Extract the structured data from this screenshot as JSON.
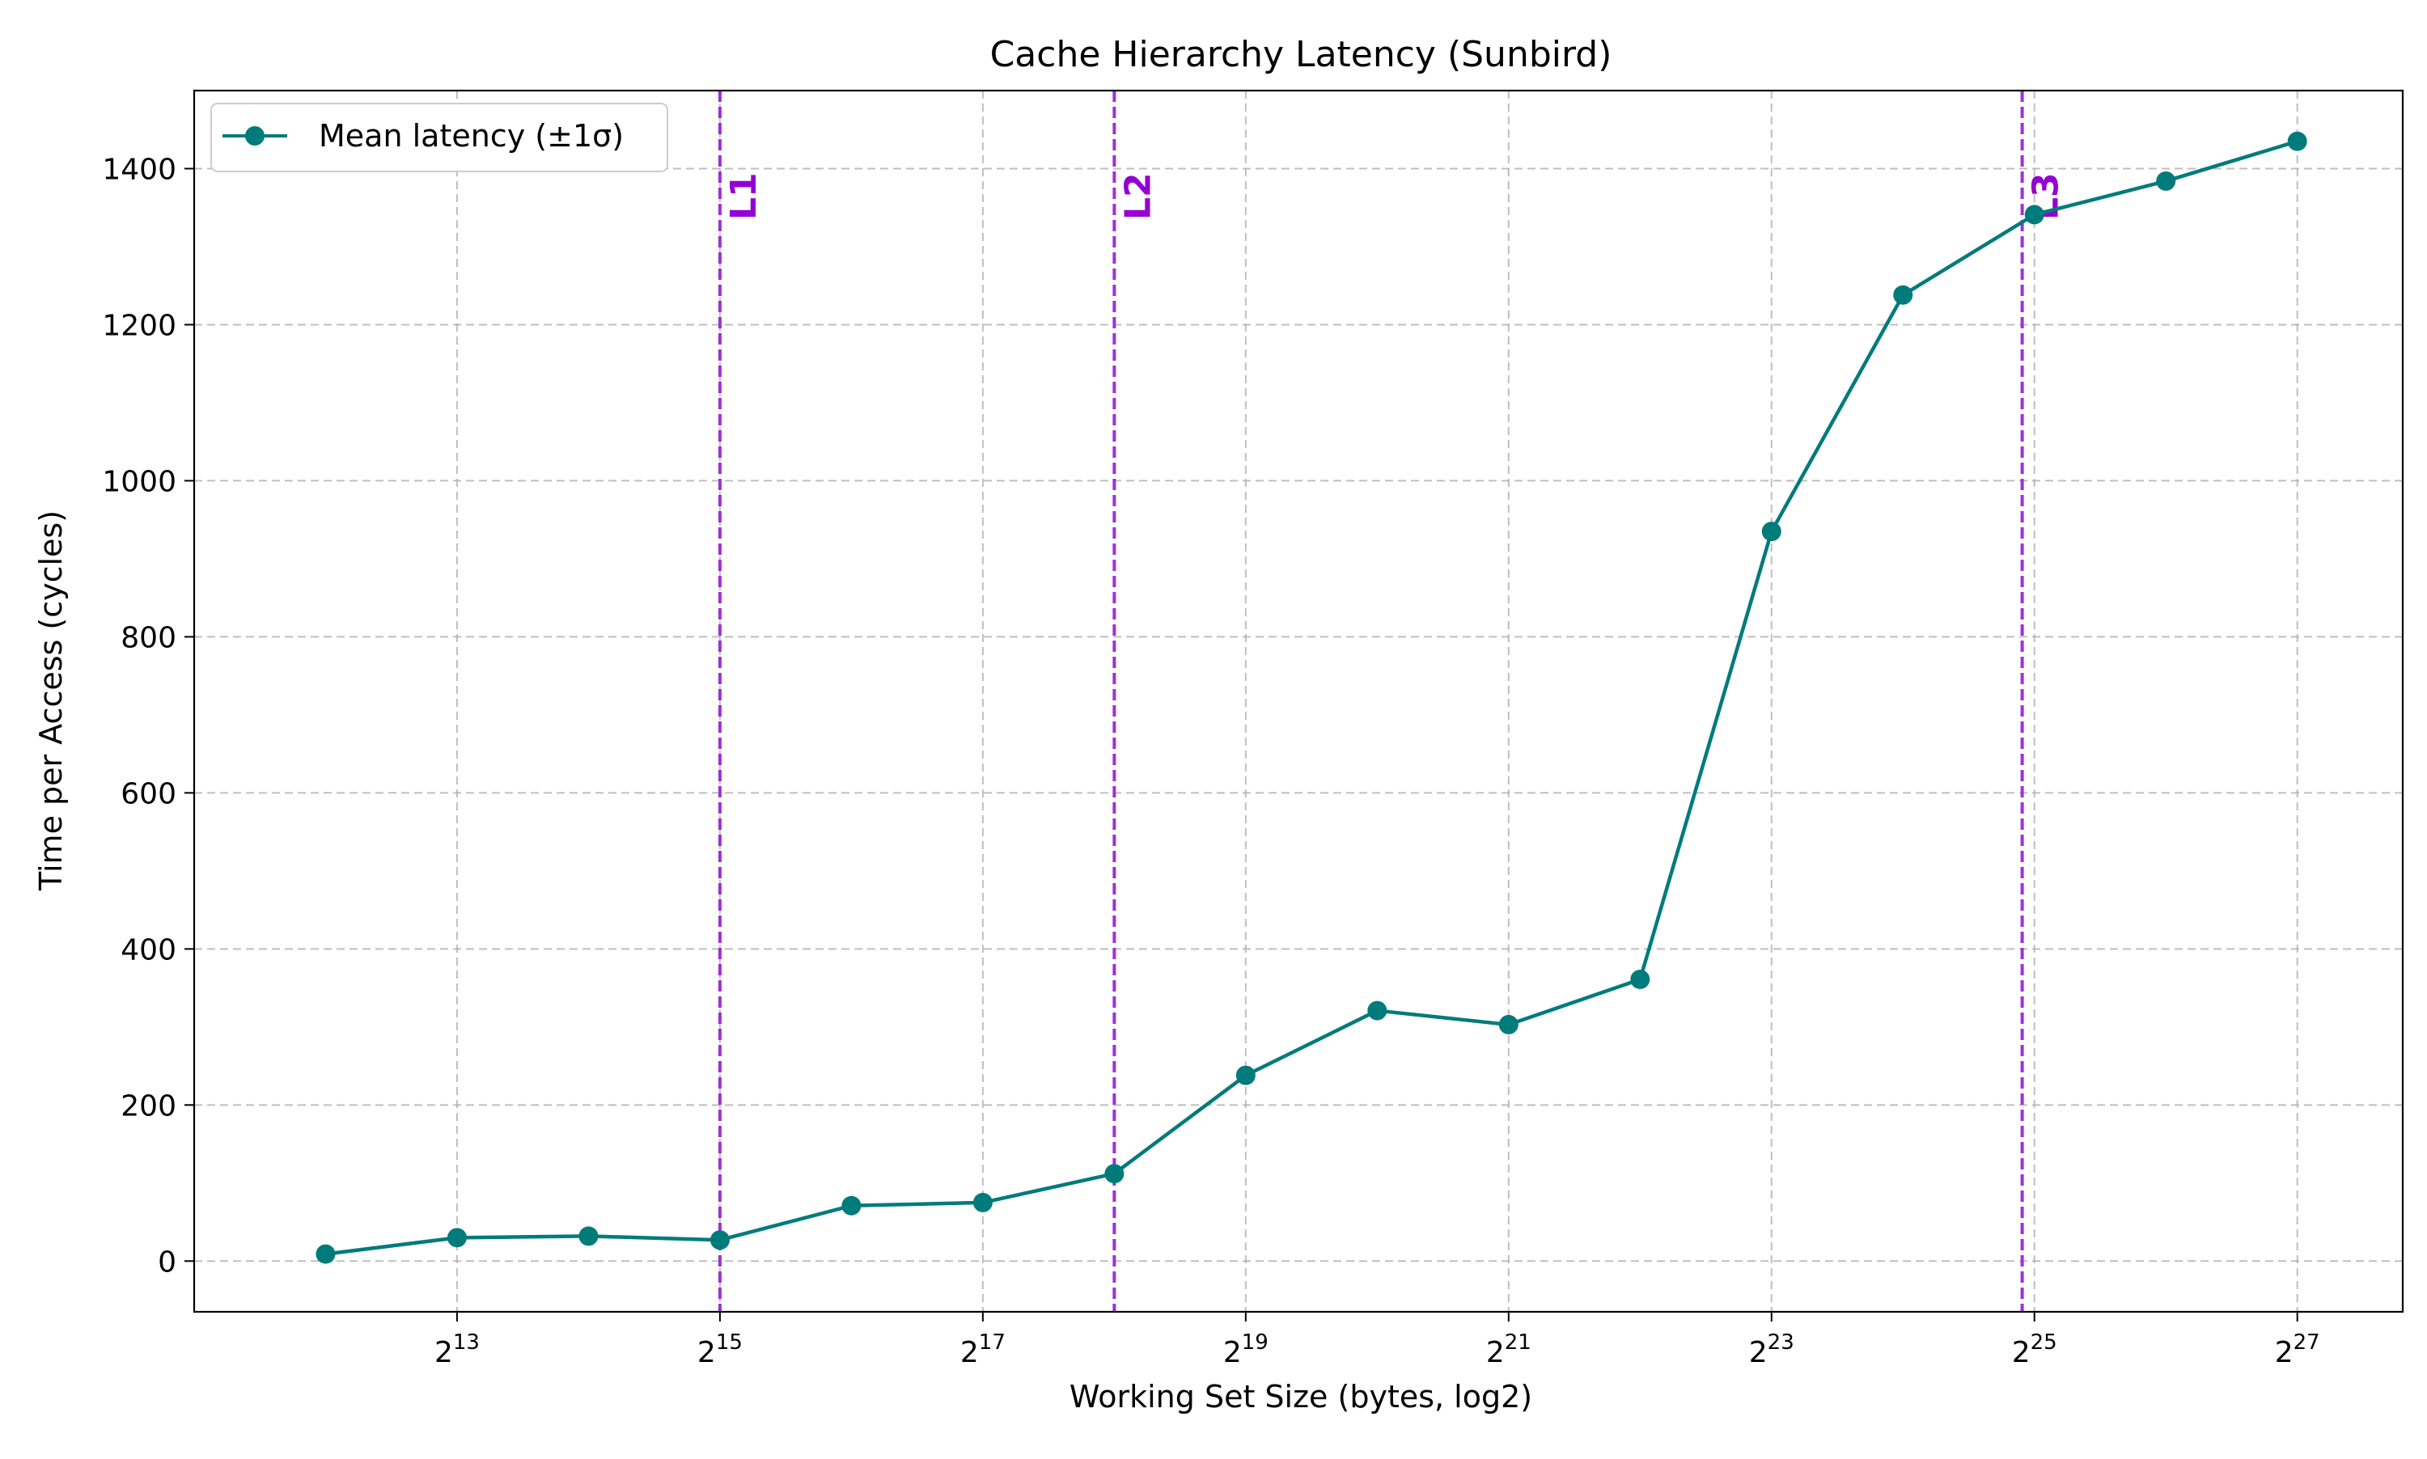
{
  "chart_data": {
    "type": "line",
    "title": "Cache Hierarchy Latency (Sunbird)",
    "xlabel": "Working Set Size (bytes, log2)",
    "ylabel": "Time per Access (cycles)",
    "x_scale": "log2",
    "xlim": [
      2048,
      234000000
    ],
    "ylim": [
      -65,
      1500
    ],
    "grid": true,
    "legend_position": "top-left",
    "x_tick_labels": [
      {
        "value": 8192,
        "base": "2",
        "exp": "13"
      },
      {
        "value": 32768,
        "base": "2",
        "exp": "15"
      },
      {
        "value": 131072,
        "base": "2",
        "exp": "17"
      },
      {
        "value": 524288,
        "base": "2",
        "exp": "19"
      },
      {
        "value": 2097152,
        "base": "2",
        "exp": "21"
      },
      {
        "value": 8388608,
        "base": "2",
        "exp": "23"
      },
      {
        "value": 33554432,
        "base": "2",
        "exp": "25"
      },
      {
        "value": 134217728,
        "base": "2",
        "exp": "27"
      }
    ],
    "y_ticks": [
      0,
      200,
      400,
      600,
      800,
      1000,
      1200,
      1400
    ],
    "series": [
      {
        "name": "Mean latency (±1σ)",
        "color": "#007b7b",
        "x": [
          4096,
          8192,
          16384,
          32768,
          65536,
          131072,
          262144,
          524288,
          1048576,
          2097152,
          4194304,
          8388608,
          16777216,
          33554432,
          67108864,
          134217728
        ],
        "y": [
          9,
          30,
          32,
          27,
          71,
          75,
          112,
          238,
          321,
          303,
          361,
          935,
          1238,
          1341,
          1384,
          1435
        ]
      }
    ],
    "cache_markers": [
      {
        "label": "L1",
        "x": 32768
      },
      {
        "label": "L2",
        "x": 262144
      },
      {
        "label": "L3",
        "x": 31457280
      }
    ],
    "marker_color": "#a030d8",
    "marker_label_color": "#9400d3",
    "grid_color": "#b0b0b0"
  }
}
